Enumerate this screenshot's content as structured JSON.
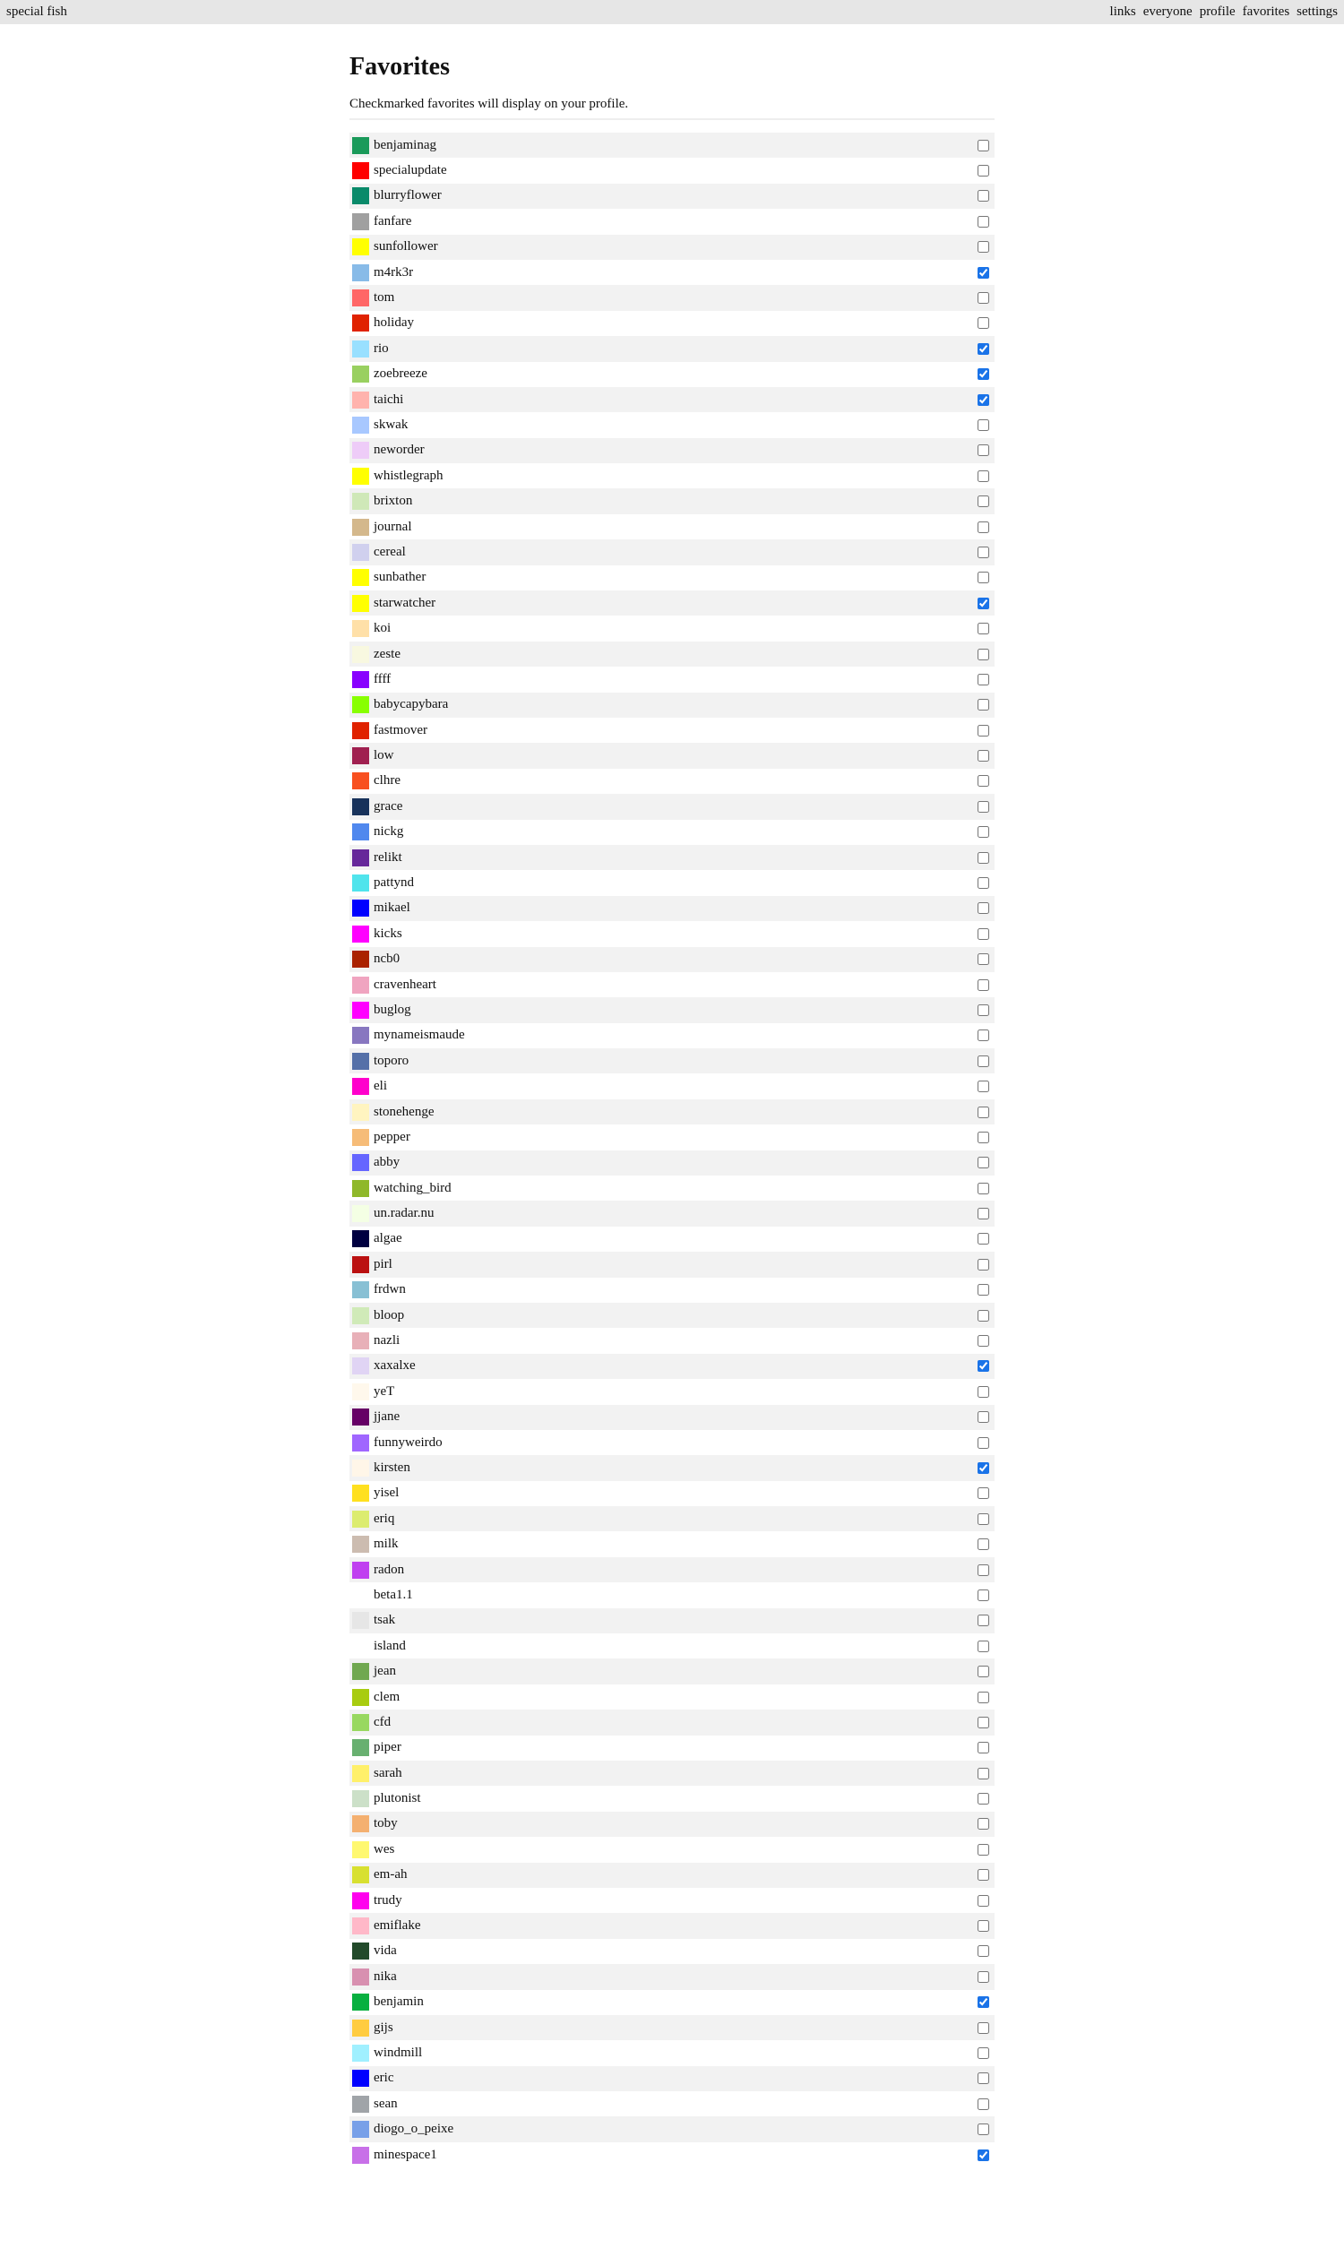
{
  "header": {
    "site_name": "special fish",
    "nav": [
      "links",
      "everyone",
      "profile",
      "favorites",
      "settings"
    ]
  },
  "page": {
    "title": "Favorites",
    "subtitle": "Checkmarked favorites will display on your profile."
  },
  "favorites": [
    {
      "name": "benjaminag",
      "color": "#1a9a5a",
      "checked": false
    },
    {
      "name": "specialupdate",
      "color": "#ff0000",
      "checked": false
    },
    {
      "name": "blurryflower",
      "color": "#0a8a6a",
      "checked": false
    },
    {
      "name": "fanfare",
      "color": "#a0a0a0",
      "checked": false
    },
    {
      "name": "sunfollower",
      "color": "#ffff00",
      "checked": false
    },
    {
      "name": "m4rk3r",
      "color": "#88bbe8",
      "checked": true
    },
    {
      "name": "tom",
      "color": "#ff6666",
      "checked": false
    },
    {
      "name": "holiday",
      "color": "#e02200",
      "checked": false
    },
    {
      "name": "rio",
      "color": "#99e0ff",
      "checked": true
    },
    {
      "name": "zoebreeze",
      "color": "#99d060",
      "checked": true
    },
    {
      "name": "taichi",
      "color": "#ffb3ad",
      "checked": true
    },
    {
      "name": "skwak",
      "color": "#a8c8ff",
      "checked": false
    },
    {
      "name": "neworder",
      "color": "#eeccf8",
      "checked": false
    },
    {
      "name": "whistlegraph",
      "color": "#ffff00",
      "checked": false
    },
    {
      "name": "brixton",
      "color": "#cfe8b8",
      "checked": false
    },
    {
      "name": "journal",
      "color": "#d4b88c",
      "checked": false
    },
    {
      "name": "cereal",
      "color": "#d0d0ee",
      "checked": false
    },
    {
      "name": "sunbather",
      "color": "#ffff00",
      "checked": false
    },
    {
      "name": "starwatcher",
      "color": "#ffff00",
      "checked": true
    },
    {
      "name": "koi",
      "color": "#ffe0a8",
      "checked": false
    },
    {
      "name": "zeste",
      "color": "#f8f8e0",
      "checked": false
    },
    {
      "name": "ffff",
      "color": "#8800ff",
      "checked": false
    },
    {
      "name": "babycapybara",
      "color": "#88ff00",
      "checked": false
    },
    {
      "name": "fastmover",
      "color": "#e02200",
      "checked": false
    },
    {
      "name": "low",
      "color": "#a02050",
      "checked": false
    },
    {
      "name": "clhre",
      "color": "#f85020",
      "checked": false
    },
    {
      "name": "grace",
      "color": "#18325a",
      "checked": false
    },
    {
      "name": "nickg",
      "color": "#5088ee",
      "checked": false
    },
    {
      "name": "relikt",
      "color": "#66289a",
      "checked": false
    },
    {
      "name": "pattynd",
      "color": "#50e4ec",
      "checked": false
    },
    {
      "name": "mikael",
      "color": "#0000ff",
      "checked": false
    },
    {
      "name": "kicks",
      "color": "#ff00ff",
      "checked": false
    },
    {
      "name": "ncb0",
      "color": "#aa2200",
      "checked": false
    },
    {
      "name": "cravenheart",
      "color": "#f0a4c0",
      "checked": false
    },
    {
      "name": "buglog",
      "color": "#ff00ff",
      "checked": false
    },
    {
      "name": "mynameismaude",
      "color": "#8877c0",
      "checked": false
    },
    {
      "name": "toporo",
      "color": "#5570a8",
      "checked": false
    },
    {
      "name": "eli",
      "color": "#ff00cc",
      "checked": false
    },
    {
      "name": "stonehenge",
      "color": "#fff4c0",
      "checked": false
    },
    {
      "name": "pepper",
      "color": "#f6bc78",
      "checked": false
    },
    {
      "name": "abby",
      "color": "#6666ff",
      "checked": false
    },
    {
      "name": "watching_bird",
      "color": "#8fb82a",
      "checked": false
    },
    {
      "name": "un.radar.nu",
      "color": "#f4ffe4",
      "checked": false
    },
    {
      "name": "algae",
      "color": "#000040",
      "checked": false
    },
    {
      "name": "pirl",
      "color": "#bb1111",
      "checked": false
    },
    {
      "name": "frdwn",
      "color": "#88c0d4",
      "checked": false
    },
    {
      "name": "bloop",
      "color": "#d0eab8",
      "checked": false
    },
    {
      "name": "nazli",
      "color": "#e8b0b8",
      "checked": false
    },
    {
      "name": "xaxalxe",
      "color": "#e0d4f4",
      "checked": true
    },
    {
      "name": "yeT",
      "color": "#fff8ec",
      "checked": false
    },
    {
      "name": "jjane",
      "color": "#660066",
      "checked": false
    },
    {
      "name": "funnyweirdo",
      "color": "#a066ff",
      "checked": false
    },
    {
      "name": "kirsten",
      "color": "#fff6e8",
      "checked": true
    },
    {
      "name": "yisel",
      "color": "#ffe020",
      "checked": false
    },
    {
      "name": "eriq",
      "color": "#dcec70",
      "checked": false
    },
    {
      "name": "milk",
      "color": "#ccbcb0",
      "checked": false
    },
    {
      "name": "radon",
      "color": "#c040f0",
      "checked": false
    },
    {
      "name": "beta1.1",
      "color": "transparent",
      "checked": false
    },
    {
      "name": "tsak",
      "color": "#e6e6e6",
      "checked": false
    },
    {
      "name": "island",
      "color": "transparent",
      "checked": false
    },
    {
      "name": "jean",
      "color": "#70a850",
      "checked": false
    },
    {
      "name": "clem",
      "color": "#a8cc10",
      "checked": false
    },
    {
      "name": "cfd",
      "color": "#98d860",
      "checked": false
    },
    {
      "name": "piper",
      "color": "#68b070",
      "checked": false
    },
    {
      "name": "sarah",
      "color": "#fff06a",
      "checked": false
    },
    {
      "name": "plutonist",
      "color": "#cce0c8",
      "checked": false
    },
    {
      "name": "toby",
      "color": "#f4b070",
      "checked": false
    },
    {
      "name": "wes",
      "color": "#fff870",
      "checked": false
    },
    {
      "name": "em-ah",
      "color": "#d8e030",
      "checked": false
    },
    {
      "name": "trudy",
      "color": "#ff00ee",
      "checked": false
    },
    {
      "name": "emiflake",
      "color": "#ffb8c8",
      "checked": false
    },
    {
      "name": "vida",
      "color": "#224a2a",
      "checked": false
    },
    {
      "name": "nika",
      "color": "#d890b0",
      "checked": false
    },
    {
      "name": "benjamin",
      "color": "#08b040",
      "checked": true
    },
    {
      "name": "gijs",
      "color": "#ffcc40",
      "checked": false
    },
    {
      "name": "windmill",
      "color": "#a0f0ff",
      "checked": false
    },
    {
      "name": "eric",
      "color": "#0000ff",
      "checked": false
    },
    {
      "name": "sean",
      "color": "#a0a4a8",
      "checked": false
    },
    {
      "name": "diogo_o_peixe",
      "color": "#78a0e8",
      "checked": false
    },
    {
      "name": "minespace1",
      "color": "#c870e8",
      "checked": true
    }
  ]
}
